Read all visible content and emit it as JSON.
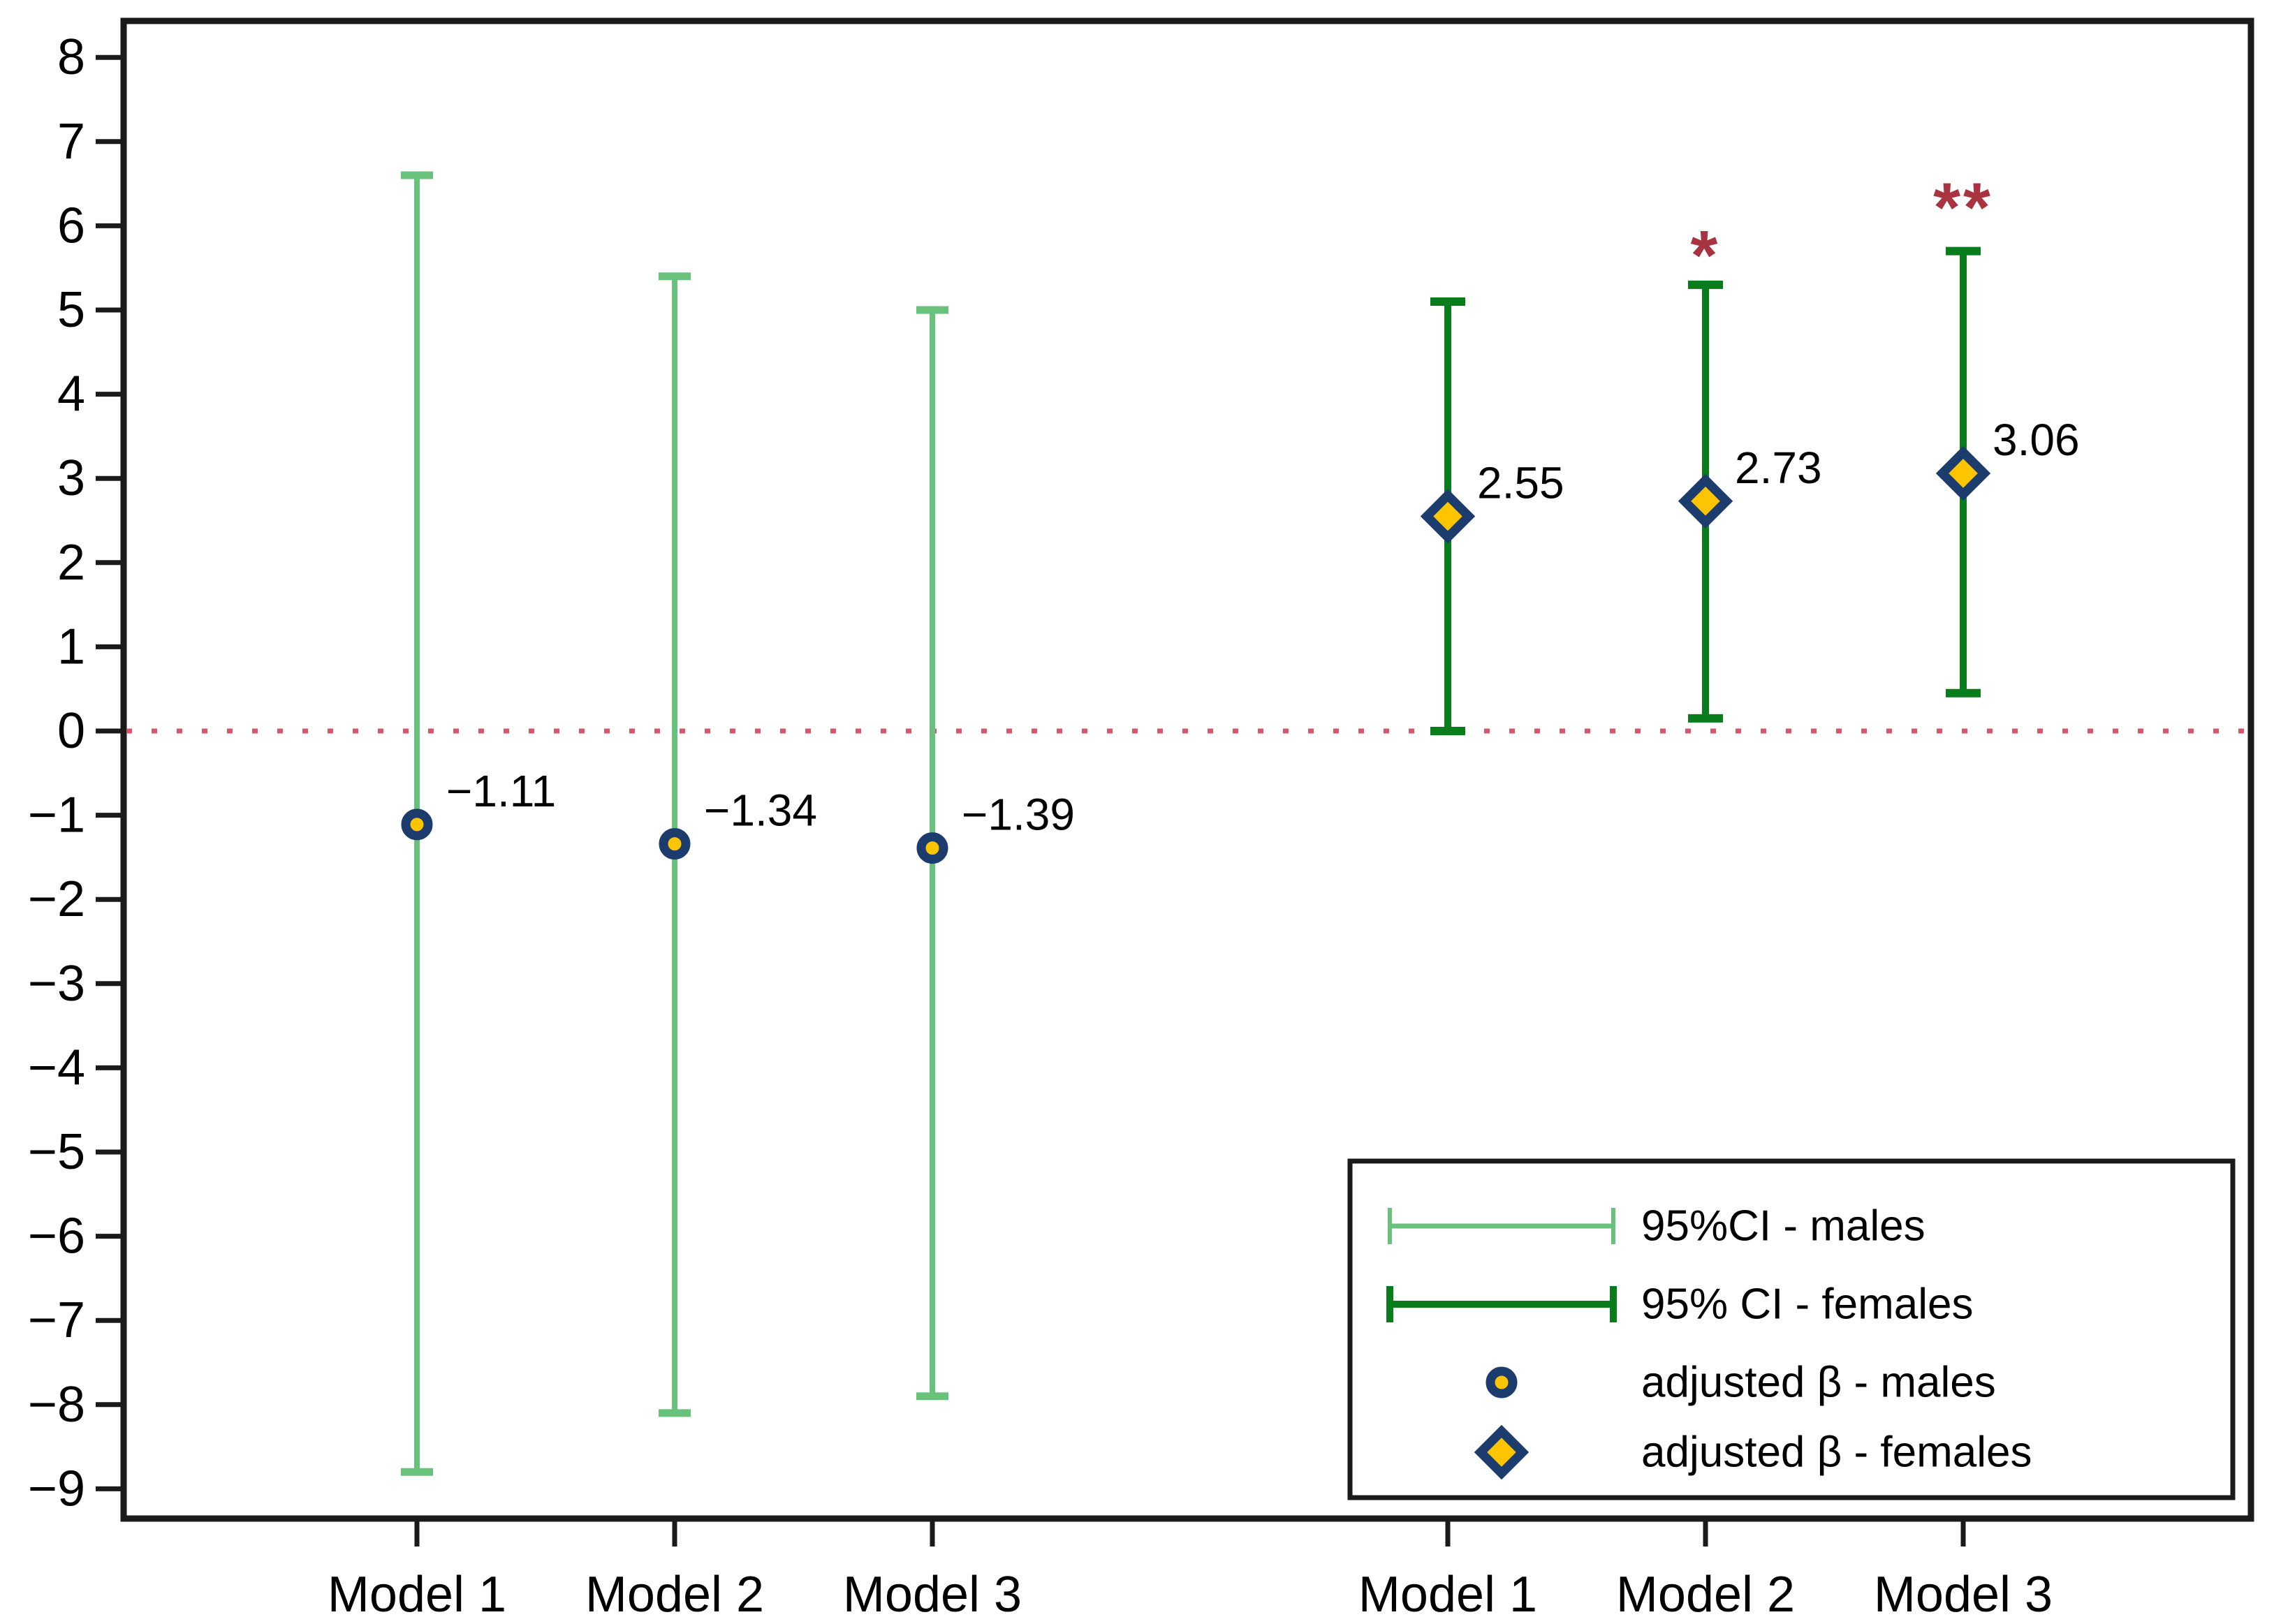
{
  "chart_data": {
    "type": "errorbar",
    "title": "",
    "xlabel": "",
    "ylabel": "",
    "grid": false,
    "background": "#ffffff",
    "axis_color": "#1a1a1a",
    "y_axis": {
      "min": -9.35,
      "max": 8.45,
      "tick_values": [
        8,
        7,
        6,
        5,
        4,
        3,
        2,
        1,
        0,
        -1,
        -2,
        -3,
        -4,
        -5,
        -6,
        -7,
        -8,
        -9
      ],
      "tick_labels": [
        "8",
        "7",
        "6",
        "5",
        "4",
        "3",
        "2",
        "1",
        "0",
        "−1",
        "−2",
        "−3",
        "−4",
        "−5",
        "−6",
        "−7",
        "−8",
        "−9"
      ]
    },
    "zero_line": {
      "value": 0,
      "style": "dotted",
      "color": "#d6566d"
    },
    "x_categories": [
      "Model 1",
      "Model 2",
      "Model 3"
    ],
    "significance_color": "#a73440",
    "marker_fill": "#fdc500",
    "marker_stroke": "#1d3c6e",
    "series": [
      {
        "name": "males",
        "marker": "circle",
        "ci_color": "#68c27c",
        "points": [
          {
            "model": "Model 1",
            "x_slot": 1,
            "beta": -1.11,
            "label": "−1.11",
            "ci_low": -8.8,
            "ci_high": 6.6,
            "significance": ""
          },
          {
            "model": "Model 2",
            "x_slot": 2,
            "beta": -1.34,
            "label": "−1.34",
            "ci_low": -8.1,
            "ci_high": 5.4,
            "significance": ""
          },
          {
            "model": "Model 3",
            "x_slot": 3,
            "beta": -1.39,
            "label": "−1.39",
            "ci_low": -7.9,
            "ci_high": 5.0,
            "significance": ""
          }
        ]
      },
      {
        "name": "females",
        "marker": "diamond",
        "ci_color": "#097d1c",
        "points": [
          {
            "model": "Model 1",
            "x_slot": 5,
            "beta": 2.55,
            "label": "2.55",
            "ci_low": 0.0,
            "ci_high": 5.1,
            "significance": ""
          },
          {
            "model": "Model 2",
            "x_slot": 6,
            "beta": 2.73,
            "label": "2.73",
            "ci_low": 0.15,
            "ci_high": 5.3,
            "significance": "*"
          },
          {
            "model": "Model 3",
            "x_slot": 7,
            "beta": 3.06,
            "label": "3.06",
            "ci_low": 0.45,
            "ci_high": 5.7,
            "significance": "**"
          }
        ]
      }
    ],
    "legend": {
      "position": "bottom-right",
      "entries": [
        {
          "label": "95%CI - males",
          "swatch": "line",
          "color": "#68c27c"
        },
        {
          "label": "95% CI - females",
          "swatch": "line",
          "color": "#097d1c"
        },
        {
          "label": "adjusted β - males",
          "swatch": "circle",
          "color": "#fdc500"
        },
        {
          "label": "adjusted β - females",
          "swatch": "diamond",
          "color": "#fdc500"
        }
      ]
    }
  }
}
